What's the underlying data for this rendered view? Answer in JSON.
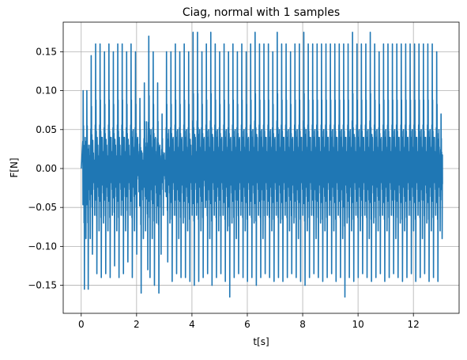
{
  "chart_data": {
    "type": "line",
    "title": "Ciag, normal with 1 samples",
    "xlabel": "t[s]",
    "ylabel": "F[N]",
    "xlim": [
      -0.65,
      13.65
    ],
    "ylim": [
      -0.186,
      0.188
    ],
    "xticks": [
      0,
      2,
      4,
      6,
      8,
      10,
      12
    ],
    "xtick_labels": [
      "0",
      "2",
      "4",
      "6",
      "8",
      "10",
      "12"
    ],
    "yticks": [
      -0.15,
      -0.1,
      -0.05,
      0.0,
      0.05,
      0.1,
      0.15
    ],
    "ytick_labels": [
      "−0.15",
      "−0.10",
      "−0.05",
      "0.00",
      "0.05",
      "0.10",
      "0.15"
    ],
    "grid": true,
    "line_color": "#1f77b4",
    "series": [
      {
        "x_start": 0.0,
        "x_end": 13.05,
        "peaks": [
          [
            0.05,
            0.1,
            -0.155
          ],
          [
            0.13,
            0.04,
            -0.09
          ],
          [
            0.18,
            0.1,
            -0.155
          ],
          [
            0.27,
            0.03,
            -0.09
          ],
          [
            0.34,
            0.145,
            -0.11
          ],
          [
            0.42,
            0.02,
            -0.06
          ],
          [
            0.5,
            0.16,
            -0.135
          ],
          [
            0.58,
            0.03,
            -0.08
          ],
          [
            0.66,
            0.16,
            -0.14
          ],
          [
            0.74,
            0.04,
            -0.07
          ],
          [
            0.82,
            0.15,
            -0.135
          ],
          [
            0.9,
            0.03,
            -0.08
          ],
          [
            0.98,
            0.16,
            -0.14
          ],
          [
            1.06,
            0.04,
            -0.06
          ],
          [
            1.14,
            0.15,
            -0.125
          ],
          [
            1.22,
            0.03,
            -0.08
          ],
          [
            1.3,
            0.16,
            -0.14
          ],
          [
            1.38,
            0.03,
            -0.06
          ],
          [
            1.46,
            0.16,
            -0.135
          ],
          [
            1.54,
            0.04,
            -0.08
          ],
          [
            1.62,
            0.15,
            -0.12
          ],
          [
            1.7,
            0.03,
            -0.06
          ],
          [
            1.78,
            0.16,
            -0.14
          ],
          [
            1.86,
            0.05,
            -0.08
          ],
          [
            1.94,
            0.15,
            -0.11
          ],
          [
            2.02,
            0.04,
            -0.03
          ],
          [
            2.1,
            0.09,
            -0.16
          ],
          [
            2.18,
            0.02,
            -0.09
          ],
          [
            2.26,
            0.11,
            -0.08
          ],
          [
            2.34,
            0.06,
            -0.13
          ],
          [
            2.42,
            0.17,
            -0.14
          ],
          [
            2.5,
            0.05,
            -0.09
          ],
          [
            2.58,
            0.15,
            -0.15
          ],
          [
            2.66,
            0.04,
            -0.07
          ],
          [
            2.74,
            0.11,
            -0.16
          ],
          [
            2.82,
            0.03,
            -0.11
          ],
          [
            2.9,
            0.07,
            -0.06
          ],
          [
            2.98,
            0.02,
            -0.03
          ],
          [
            3.06,
            0.15,
            -0.12
          ],
          [
            3.14,
            0.05,
            -0.07
          ],
          [
            3.22,
            0.15,
            -0.145
          ],
          [
            3.3,
            0.04,
            -0.06
          ],
          [
            3.38,
            0.16,
            -0.135
          ],
          [
            3.46,
            0.05,
            -0.09
          ],
          [
            3.54,
            0.15,
            -0.14
          ],
          [
            3.62,
            0.04,
            -0.07
          ],
          [
            3.7,
            0.16,
            -0.14
          ],
          [
            3.78,
            0.05,
            -0.08
          ],
          [
            3.86,
            0.15,
            -0.145
          ],
          [
            3.94,
            0.03,
            -0.06
          ],
          [
            4.02,
            0.175,
            -0.15
          ],
          [
            4.1,
            0.04,
            -0.06
          ],
          [
            4.18,
            0.175,
            -0.145
          ],
          [
            4.26,
            0.05,
            -0.08
          ],
          [
            4.34,
            0.15,
            -0.14
          ],
          [
            4.42,
            0.04,
            -0.05
          ],
          [
            4.5,
            0.16,
            -0.135
          ],
          [
            4.58,
            0.05,
            -0.09
          ],
          [
            4.66,
            0.175,
            -0.15
          ],
          [
            4.74,
            0.04,
            -0.06
          ],
          [
            4.82,
            0.16,
            -0.14
          ],
          [
            4.9,
            0.05,
            -0.08
          ],
          [
            4.98,
            0.15,
            -0.135
          ],
          [
            5.06,
            0.04,
            -0.06
          ],
          [
            5.14,
            0.16,
            -0.145
          ],
          [
            5.22,
            0.05,
            -0.08
          ],
          [
            5.3,
            0.15,
            -0.165
          ],
          [
            5.38,
            0.04,
            -0.07
          ],
          [
            5.46,
            0.16,
            -0.14
          ],
          [
            5.54,
            0.05,
            -0.09
          ],
          [
            5.62,
            0.15,
            -0.135
          ],
          [
            5.7,
            0.04,
            -0.06
          ],
          [
            5.78,
            0.16,
            -0.14
          ],
          [
            5.86,
            0.05,
            -0.08
          ],
          [
            5.94,
            0.15,
            -0.145
          ],
          [
            6.02,
            0.04,
            -0.06
          ],
          [
            6.1,
            0.16,
            -0.14
          ],
          [
            6.18,
            0.05,
            -0.07
          ],
          [
            6.26,
            0.175,
            -0.15
          ],
          [
            6.34,
            0.04,
            -0.06
          ],
          [
            6.42,
            0.16,
            -0.14
          ],
          [
            6.5,
            0.05,
            -0.09
          ],
          [
            6.58,
            0.16,
            -0.135
          ],
          [
            6.66,
            0.04,
            -0.06
          ],
          [
            6.74,
            0.16,
            -0.14
          ],
          [
            6.82,
            0.05,
            -0.08
          ],
          [
            6.9,
            0.15,
            -0.145
          ],
          [
            6.98,
            0.04,
            -0.06
          ],
          [
            7.06,
            0.175,
            -0.14
          ],
          [
            7.14,
            0.05,
            -0.07
          ],
          [
            7.22,
            0.16,
            -0.145
          ],
          [
            7.3,
            0.04,
            -0.06
          ],
          [
            7.38,
            0.16,
            -0.14
          ],
          [
            7.46,
            0.05,
            -0.08
          ],
          [
            7.54,
            0.15,
            -0.135
          ],
          [
            7.62,
            0.04,
            -0.07
          ],
          [
            7.7,
            0.16,
            -0.14
          ],
          [
            7.78,
            0.05,
            -0.09
          ],
          [
            7.86,
            0.16,
            -0.145
          ],
          [
            7.94,
            0.04,
            -0.06
          ],
          [
            8.02,
            0.175,
            -0.15
          ],
          [
            8.1,
            0.05,
            -0.08
          ],
          [
            8.18,
            0.16,
            -0.14
          ],
          [
            8.26,
            0.04,
            -0.06
          ],
          [
            8.34,
            0.16,
            -0.135
          ],
          [
            8.42,
            0.05,
            -0.09
          ],
          [
            8.5,
            0.16,
            -0.14
          ],
          [
            8.58,
            0.04,
            -0.07
          ],
          [
            8.66,
            0.16,
            -0.145
          ],
          [
            8.74,
            0.05,
            -0.08
          ],
          [
            8.82,
            0.16,
            -0.14
          ],
          [
            8.9,
            0.04,
            -0.06
          ],
          [
            8.98,
            0.16,
            -0.135
          ],
          [
            9.06,
            0.05,
            -0.08
          ],
          [
            9.14,
            0.16,
            -0.145
          ],
          [
            9.22,
            0.04,
            -0.06
          ],
          [
            9.3,
            0.16,
            -0.14
          ],
          [
            9.38,
            0.05,
            -0.09
          ],
          [
            9.46,
            0.16,
            -0.165
          ],
          [
            9.54,
            0.04,
            -0.07
          ],
          [
            9.62,
            0.16,
            -0.14
          ],
          [
            9.7,
            0.05,
            -0.08
          ],
          [
            9.78,
            0.175,
            -0.145
          ],
          [
            9.86,
            0.04,
            -0.06
          ],
          [
            9.94,
            0.16,
            -0.14
          ],
          [
            10.02,
            0.05,
            -0.08
          ],
          [
            10.1,
            0.16,
            -0.135
          ],
          [
            10.18,
            0.04,
            -0.06
          ],
          [
            10.26,
            0.16,
            -0.14
          ],
          [
            10.34,
            0.05,
            -0.09
          ],
          [
            10.42,
            0.175,
            -0.145
          ],
          [
            10.5,
            0.04,
            -0.07
          ],
          [
            10.58,
            0.16,
            -0.14
          ],
          [
            10.66,
            0.05,
            -0.08
          ],
          [
            10.74,
            0.15,
            -0.135
          ],
          [
            10.82,
            0.04,
            -0.06
          ],
          [
            10.9,
            0.16,
            -0.145
          ],
          [
            10.98,
            0.05,
            -0.08
          ],
          [
            11.06,
            0.16,
            -0.14
          ],
          [
            11.14,
            0.04,
            -0.06
          ],
          [
            11.22,
            0.16,
            -0.135
          ],
          [
            11.3,
            0.05,
            -0.09
          ],
          [
            11.38,
            0.16,
            -0.14
          ],
          [
            11.46,
            0.04,
            -0.07
          ],
          [
            11.54,
            0.16,
            -0.145
          ],
          [
            11.62,
            0.05,
            -0.08
          ],
          [
            11.7,
            0.16,
            -0.14
          ],
          [
            11.78,
            0.04,
            -0.06
          ],
          [
            11.86,
            0.16,
            -0.135
          ],
          [
            11.94,
            0.05,
            -0.08
          ],
          [
            12.02,
            0.16,
            -0.145
          ],
          [
            12.1,
            0.04,
            -0.06
          ],
          [
            12.18,
            0.16,
            -0.14
          ],
          [
            12.26,
            0.05,
            -0.09
          ],
          [
            12.34,
            0.16,
            -0.135
          ],
          [
            12.42,
            0.04,
            -0.07
          ],
          [
            12.5,
            0.16,
            -0.145
          ],
          [
            12.58,
            0.05,
            -0.08
          ],
          [
            12.66,
            0.16,
            -0.14
          ],
          [
            12.74,
            0.04,
            -0.06
          ],
          [
            12.82,
            0.15,
            -0.145
          ],
          [
            12.9,
            0.05,
            -0.08
          ],
          [
            12.98,
            0.07,
            -0.09
          ]
        ]
      }
    ]
  }
}
